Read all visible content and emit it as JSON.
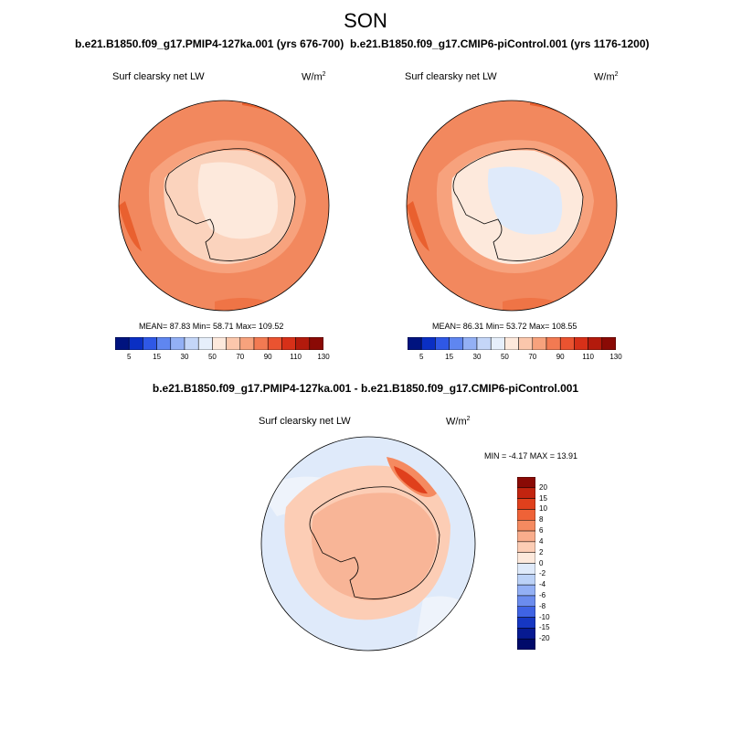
{
  "figure_title": "SON",
  "panels": [
    {
      "case_title": "b.e21.B1850.f09_g17.PMIP4-127ka.001 (yrs 676-700)",
      "variable": "Surf clearsky net LW",
      "units_base": "W/m",
      "units_exp": "2",
      "stats": "MEAN=  87.83  Min=  58.71  Max= 109.52"
    },
    {
      "case_title": "b.e21.B1850.f09_g17.CMIP6-piControl.001 (yrs 1176-1200)",
      "variable": "Surf clearsky net LW",
      "units_base": "W/m",
      "units_exp": "2",
      "stats": "MEAN=  86.31  Min=  53.72  Max= 108.55"
    }
  ],
  "diff_panel": {
    "case_title": "b.e21.B1850.f09_g17.PMIP4-127ka.001 - b.e21.B1850.f09_g17.CMIP6-piControl.001",
    "variable": "Surf clearsky net LW",
    "units_base": "W/m",
    "units_exp": "2",
    "stats": "MIN =  -4.17 MAX =  13.91"
  },
  "abs_colorbar": {
    "labels": [
      "5",
      "15",
      "30",
      "50",
      "70",
      "90",
      "110",
      "130"
    ],
    "colors": [
      "#00137f",
      "#0a2fc4",
      "#2f58e6",
      "#5f86f0",
      "#93b0f5",
      "#c4d6f8",
      "#e6effb",
      "#fde9dc",
      "#fbc7ac",
      "#f7a27d",
      "#f27a52",
      "#ea5330",
      "#d73018",
      "#b31a0c",
      "#8a0a05"
    ]
  },
  "diff_colorbar": {
    "labels": [
      "20",
      "15",
      "10",
      "8",
      "6",
      "4",
      "2",
      "0",
      "-2",
      "-4",
      "-6",
      "-8",
      "-10",
      "-15",
      "-20"
    ],
    "colors": [
      "#8a0a05",
      "#c2240f",
      "#e0401c",
      "#ef6237",
      "#f58a60",
      "#f9ad8c",
      "#fccdb5",
      "#fde9dc",
      "#dfeafa",
      "#bcd2f7",
      "#93b0f5",
      "#6b8cee",
      "#3f63e4",
      "#1637c2",
      "#071a92",
      "#000a6a"
    ]
  },
  "map_colors": {
    "ocean_abs": "#f2885e",
    "ocean_abs_dark": "#e9602f",
    "antarctica_abs": "#fbd3bd",
    "interior_abs": "#fde9dc",
    "interior_pi": "#dfeafa",
    "diff_ocean": "#dfeafa",
    "diff_ocean_light": "#eef3fb",
    "diff_land": "#f8b597",
    "diff_land_light": "#fccdb5",
    "diff_hot": "#e0401c"
  }
}
